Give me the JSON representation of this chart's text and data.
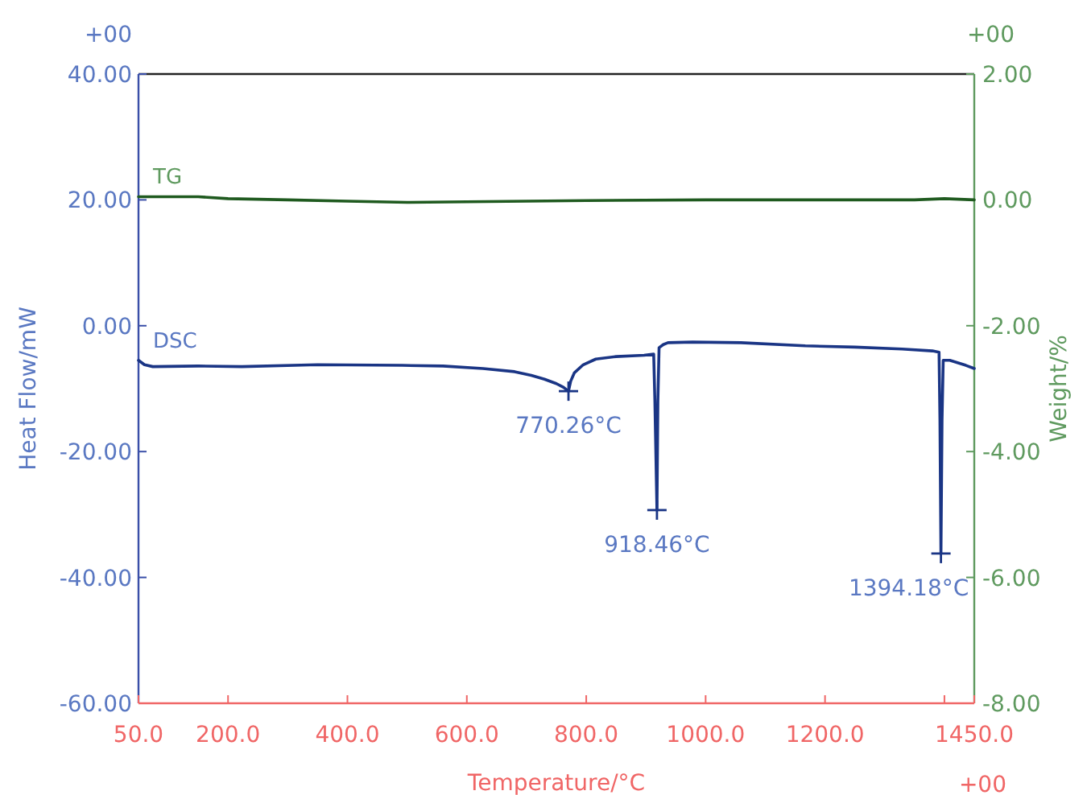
{
  "chart_data": {
    "type": "line",
    "xlabel": "Temperature/°C",
    "ylabel": "Heat Flow/mW",
    "y2label": "Weight/%",
    "xlim": [
      50,
      1450
    ],
    "xticks": [
      {
        "value": 50,
        "label": "50.0"
      },
      {
        "value": 200,
        "label": "200.0"
      },
      {
        "value": 400,
        "label": "400.0"
      },
      {
        "value": 600,
        "label": "600.0"
      },
      {
        "value": 800,
        "label": "800.0"
      },
      {
        "value": 1000,
        "label": "1000.0"
      },
      {
        "value": 1200,
        "label": "1200.0"
      },
      {
        "value": 1400,
        "label": null
      },
      {
        "value": 1450,
        "label": "1450.0"
      }
    ],
    "ylim": [
      -60,
      40
    ],
    "yticks": [
      {
        "value": -60,
        "label": "-60.00"
      },
      {
        "value": -40,
        "label": "-40.00"
      },
      {
        "value": -20,
        "label": "-20.00"
      },
      {
        "value": 0,
        "label": "0.00"
      },
      {
        "value": 20,
        "label": "20.00"
      },
      {
        "value": 40,
        "label": "40.00"
      }
    ],
    "y2lim": [
      -8,
      2
    ],
    "y2ticks": [
      {
        "value": -8,
        "label": "-8.00"
      },
      {
        "value": -6,
        "label": "-6.00"
      },
      {
        "value": -4,
        "label": "-4.00"
      },
      {
        "value": -2,
        "label": "-2.00"
      },
      {
        "value": 0,
        "label": "0.00"
      },
      {
        "value": 2,
        "label": "2.00"
      }
    ],
    "grid": false,
    "marker": "none",
    "line_style": "solid",
    "series": [
      {
        "name": "TG",
        "color": "#1f5a1f",
        "axis": "y2",
        "x": [
          50,
          150,
          200,
          300,
          400,
          500,
          600,
          700,
          800,
          1000,
          1200,
          1350,
          1400,
          1450
        ],
        "values": [
          0.05,
          0.05,
          0.02,
          0.0,
          -0.02,
          -0.04,
          -0.03,
          -0.02,
          -0.01,
          0.0,
          0.0,
          0.0,
          0.02,
          0.0
        ]
      },
      {
        "name": "DSC",
        "color": "#1a3585",
        "axis": "y",
        "x": [
          50,
          60,
          74,
          150,
          223,
          350,
          492,
          560,
          627,
          680,
          708,
          730,
          750,
          762,
          770.26,
          774,
          780,
          795,
          816,
          850,
          897,
          913,
          915,
          918.46,
          920,
          922,
          929,
          937,
          978,
          1059,
          1167,
          1250,
          1329,
          1380,
          1391,
          1392.5,
          1394.18,
          1396,
          1398,
          1409,
          1436,
          1450
        ],
        "values": [
          -5.5,
          -6.2,
          -6.5,
          -6.4,
          -6.5,
          -6.2,
          -6.3,
          -6.4,
          -6.8,
          -7.3,
          -7.9,
          -8.5,
          -9.2,
          -9.8,
          -10.4,
          -8.8,
          -7.5,
          -6.2,
          -5.3,
          -4.9,
          -4.7,
          -4.5,
          -12,
          -29.3,
          -12,
          -3.5,
          -3.0,
          -2.7,
          -2.6,
          -2.7,
          -3.2,
          -3.4,
          -3.7,
          -4.0,
          -4.2,
          -15,
          -36.2,
          -15,
          -5.5,
          -5.5,
          -6.3,
          -6.8
        ]
      }
    ],
    "annotations": [
      "+00",
      "+00",
      "+00",
      {
        "text": "770.26°C",
        "x": 770.26,
        "y": -10.4
      },
      {
        "text": "918.46°C",
        "x": 918.46,
        "y": -29.3
      },
      {
        "text": "1394.18°C",
        "x": 1394.18,
        "y": -36.2
      }
    ]
  }
}
